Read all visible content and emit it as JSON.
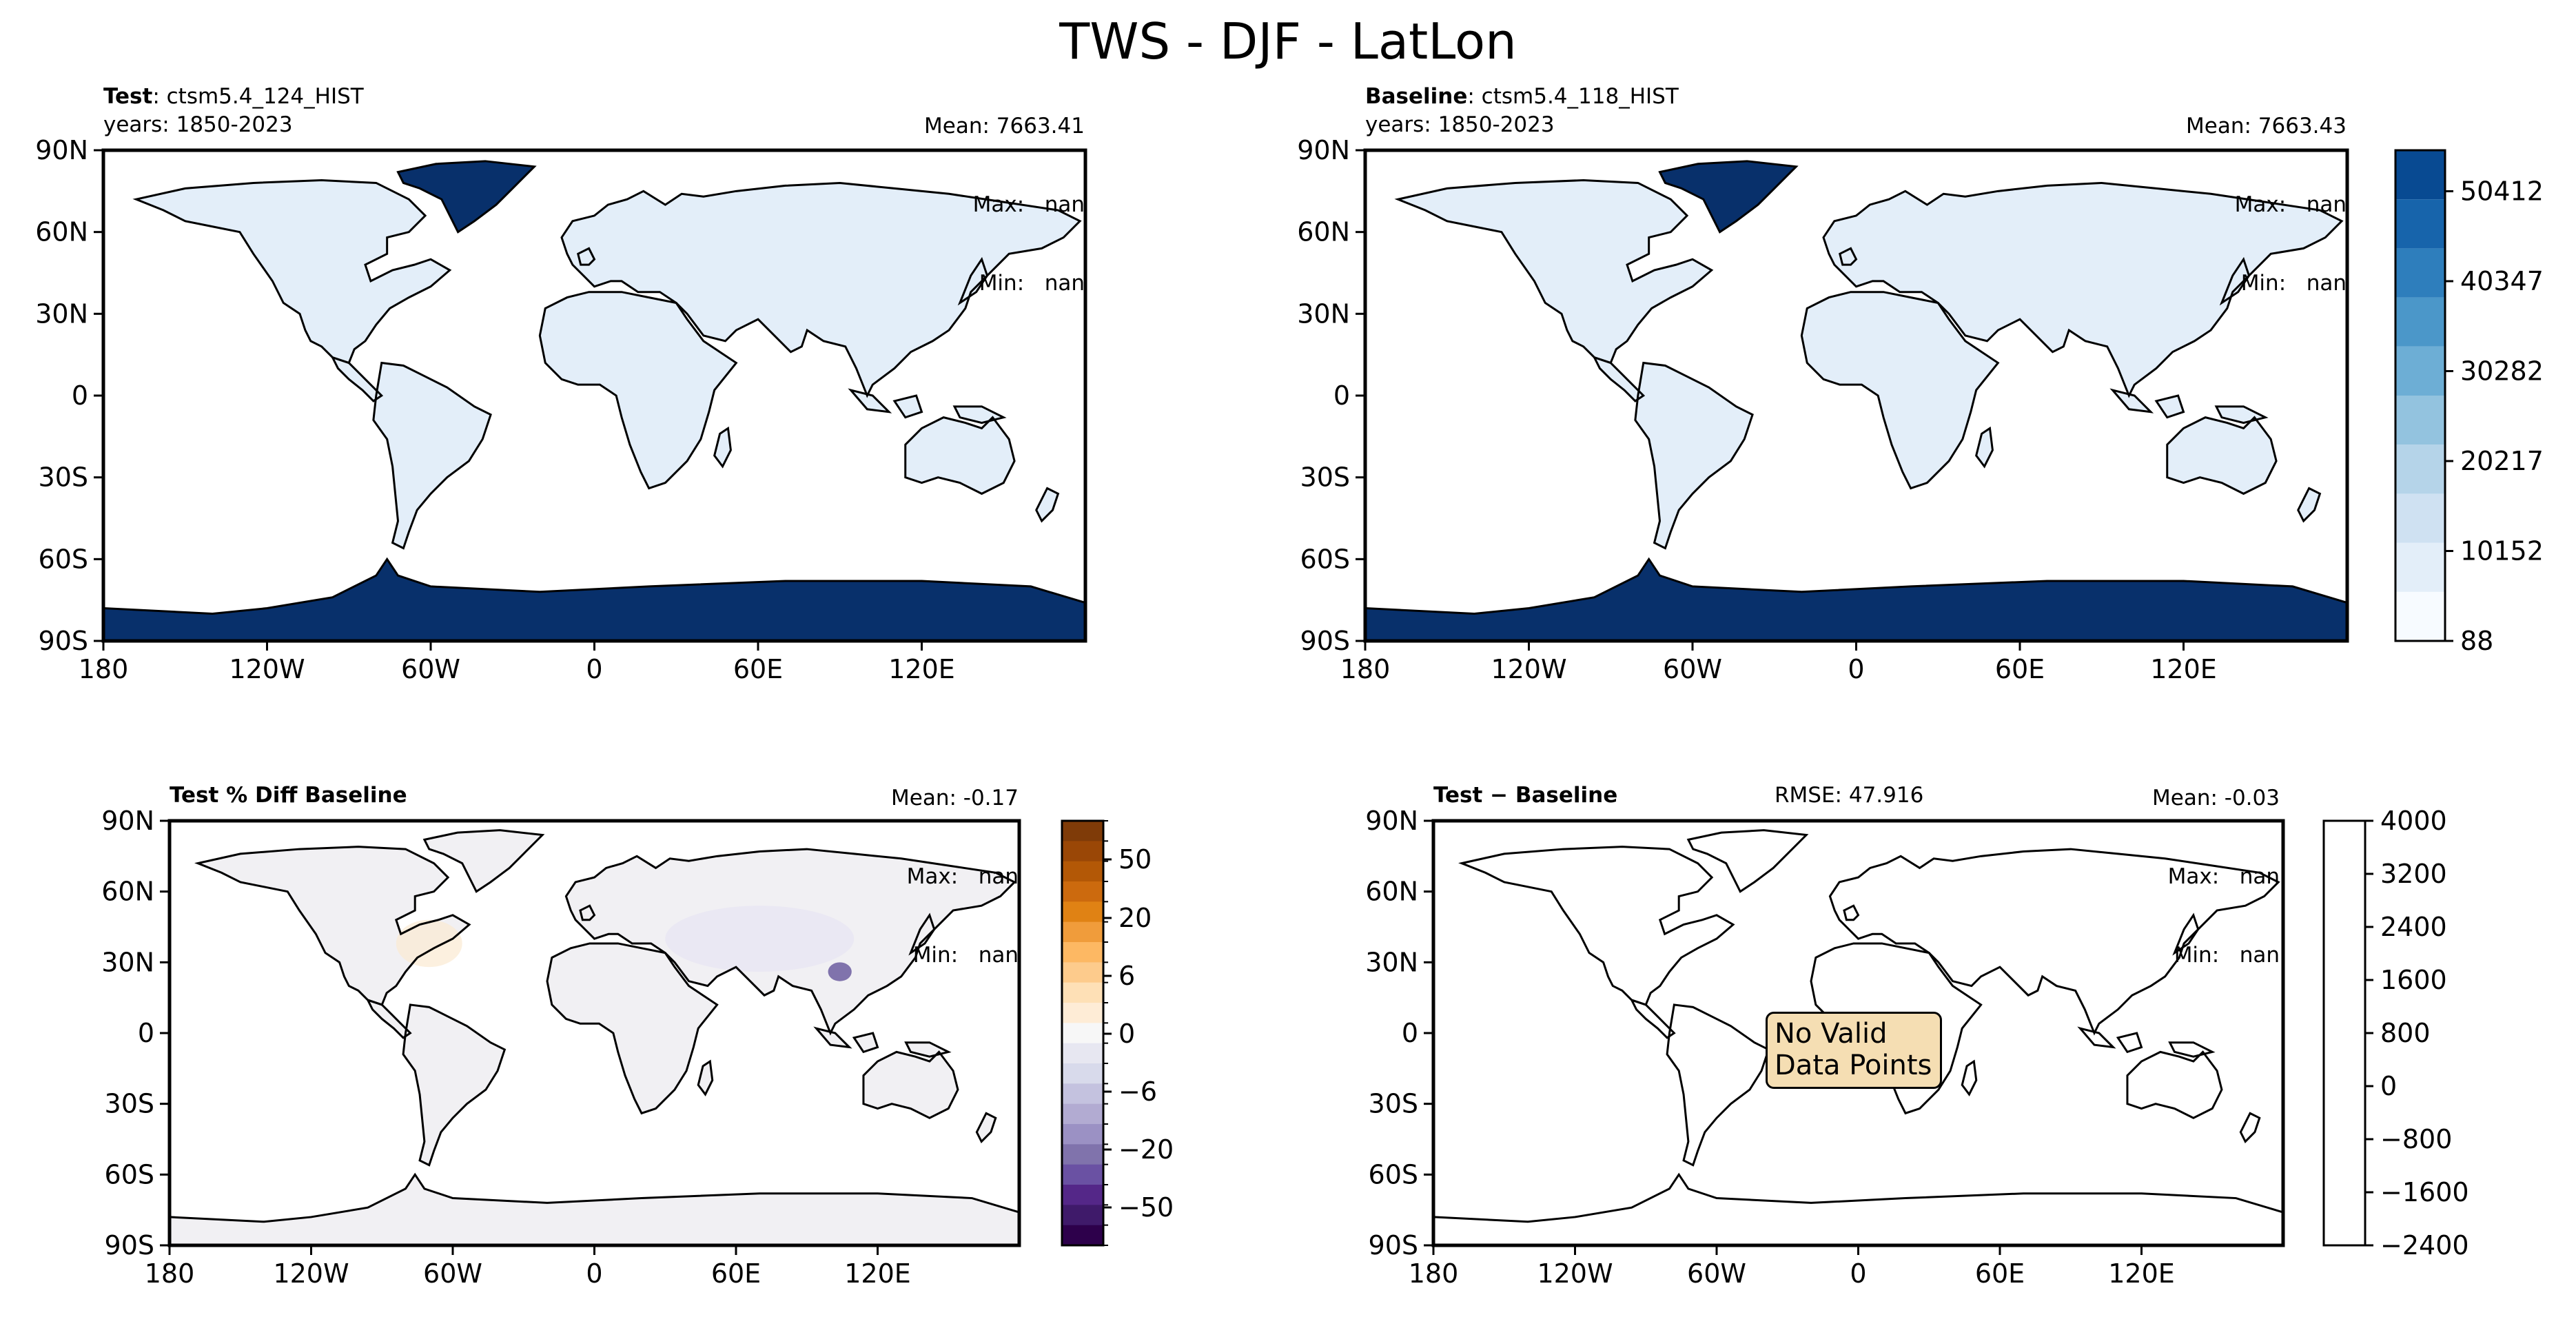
{
  "figure_title": "TWS - DJF - LatLon",
  "panels": {
    "test": {
      "label_bold": "Test",
      "label_rest": ": ctsm5.4_124_HIST",
      "years": "years: 1850-2023",
      "stats": {
        "mean": "Mean: 7663.41",
        "max": "Max:   nan",
        "min": "Min:   nan"
      }
    },
    "baseline": {
      "label_bold": "Baseline",
      "label_rest": ": ctsm5.4_118_HIST",
      "years": "years: 1850-2023",
      "stats": {
        "mean": "Mean: 7663.43",
        "max": "Max:   nan",
        "min": "Min:   nan"
      }
    },
    "pctdiff": {
      "label_bold": "Test % Diff Baseline",
      "stats": {
        "mean": "Mean: -0.17",
        "max": "Max:   nan",
        "min": "Min:   nan"
      }
    },
    "diff": {
      "label_bold": "Test − Baseline",
      "rmse": "RMSE: 47.916",
      "stats": {
        "mean": "Mean: -0.03",
        "max": "Max:   nan",
        "min": "Min:   nan"
      },
      "no_data": [
        "No Valid",
        "Data Points"
      ]
    }
  },
  "axes": {
    "lat_ticks": [
      "90N",
      "60N",
      "30N",
      "0",
      "30S",
      "60S",
      "90S"
    ],
    "lon_ticks": [
      "180",
      "120W",
      "60W",
      "0",
      "60E",
      "120E"
    ]
  },
  "colorbars": {
    "main": {
      "ticks": [
        "88",
        "10152",
        "20217",
        "30282",
        "40347",
        "50412"
      ],
      "tick_values": [
        88,
        10152,
        20217,
        30282,
        40347,
        50412
      ],
      "levels": 10,
      "colors": [
        "#f7fbff",
        "#e3eef9",
        "#cfe1f2",
        "#b5d4e9",
        "#93c3df",
        "#6daed5",
        "#4b97c9",
        "#2e7ebc",
        "#1764ab",
        "#084a92",
        "#08306b"
      ]
    },
    "pctdiff": {
      "ticks": [
        "50",
        "20",
        "6",
        "0",
        "−6",
        "−20",
        "−50"
      ],
      "colors": [
        "#7f3b08",
        "#9a4706",
        "#b35806",
        "#cc6a0e",
        "#e08214",
        "#f09c3b",
        "#fdb863",
        "#fdcb8c",
        "#fee0b6",
        "#feecd6",
        "#f7f7f7",
        "#e7e7f1",
        "#d8daeb",
        "#c4c2df",
        "#b2abd2",
        "#9b91c4",
        "#8073ac",
        "#6a51a3",
        "#542788",
        "#3f1a6a",
        "#2d004b"
      ]
    },
    "diff": {
      "ticks": [
        "4000",
        "3200",
        "2400",
        "1600",
        "800",
        "0",
        "−800",
        "−1600",
        "−2400"
      ],
      "tick_values": [
        4000,
        3200,
        2400,
        1600,
        800,
        0,
        -800,
        -1600,
        -2400
      ]
    }
  },
  "chart_data": [
    {
      "type": "heatmap",
      "title": "Test: ctsm5.4_124_HIST",
      "subtitle": "years: 1850-2023",
      "x_ticks": [
        "180",
        "120W",
        "60W",
        "0",
        "60E",
        "120E"
      ],
      "y_ticks": [
        "90N",
        "60N",
        "30N",
        "0",
        "30S",
        "60S",
        "90S"
      ],
      "xlim": [
        -180,
        180
      ],
      "ylim": [
        -90,
        90
      ],
      "colorbar_range": [
        88,
        55000
      ],
      "mean": 7663.41,
      "max": "nan",
      "min": "nan"
    },
    {
      "type": "heatmap",
      "title": "Baseline: ctsm5.4_118_HIST",
      "subtitle": "years: 1850-2023",
      "x_ticks": [
        "180",
        "120W",
        "60W",
        "0",
        "60E",
        "120E"
      ],
      "y_ticks": [
        "90N",
        "60N",
        "30N",
        "0",
        "30S",
        "60S",
        "90S"
      ],
      "xlim": [
        -180,
        180
      ],
      "ylim": [
        -90,
        90
      ],
      "colorbar_range": [
        88,
        55000
      ],
      "mean": 7663.43,
      "max": "nan",
      "min": "nan"
    },
    {
      "type": "heatmap",
      "title": "Test % Diff Baseline",
      "x_ticks": [
        "180",
        "120W",
        "60W",
        "0",
        "60E",
        "120E"
      ],
      "y_ticks": [
        "90N",
        "60N",
        "30N",
        "0",
        "30S",
        "60S",
        "90S"
      ],
      "xlim": [
        -180,
        180
      ],
      "ylim": [
        -90,
        90
      ],
      "mean": -0.17,
      "max": "nan",
      "min": "nan"
    },
    {
      "type": "heatmap",
      "title": "Test − Baseline",
      "annotation": "No Valid Data Points",
      "x_ticks": [
        "180",
        "120W",
        "60W",
        "0",
        "60E",
        "120E"
      ],
      "y_ticks": [
        "90N",
        "60N",
        "30N",
        "0",
        "30S",
        "60S",
        "90S"
      ],
      "xlim": [
        -180,
        180
      ],
      "ylim": [
        -90,
        90
      ],
      "colorbar_range": [
        -2400,
        4000
      ],
      "mean": -0.03,
      "max": "nan",
      "min": "nan",
      "rmse": 47.916
    }
  ]
}
